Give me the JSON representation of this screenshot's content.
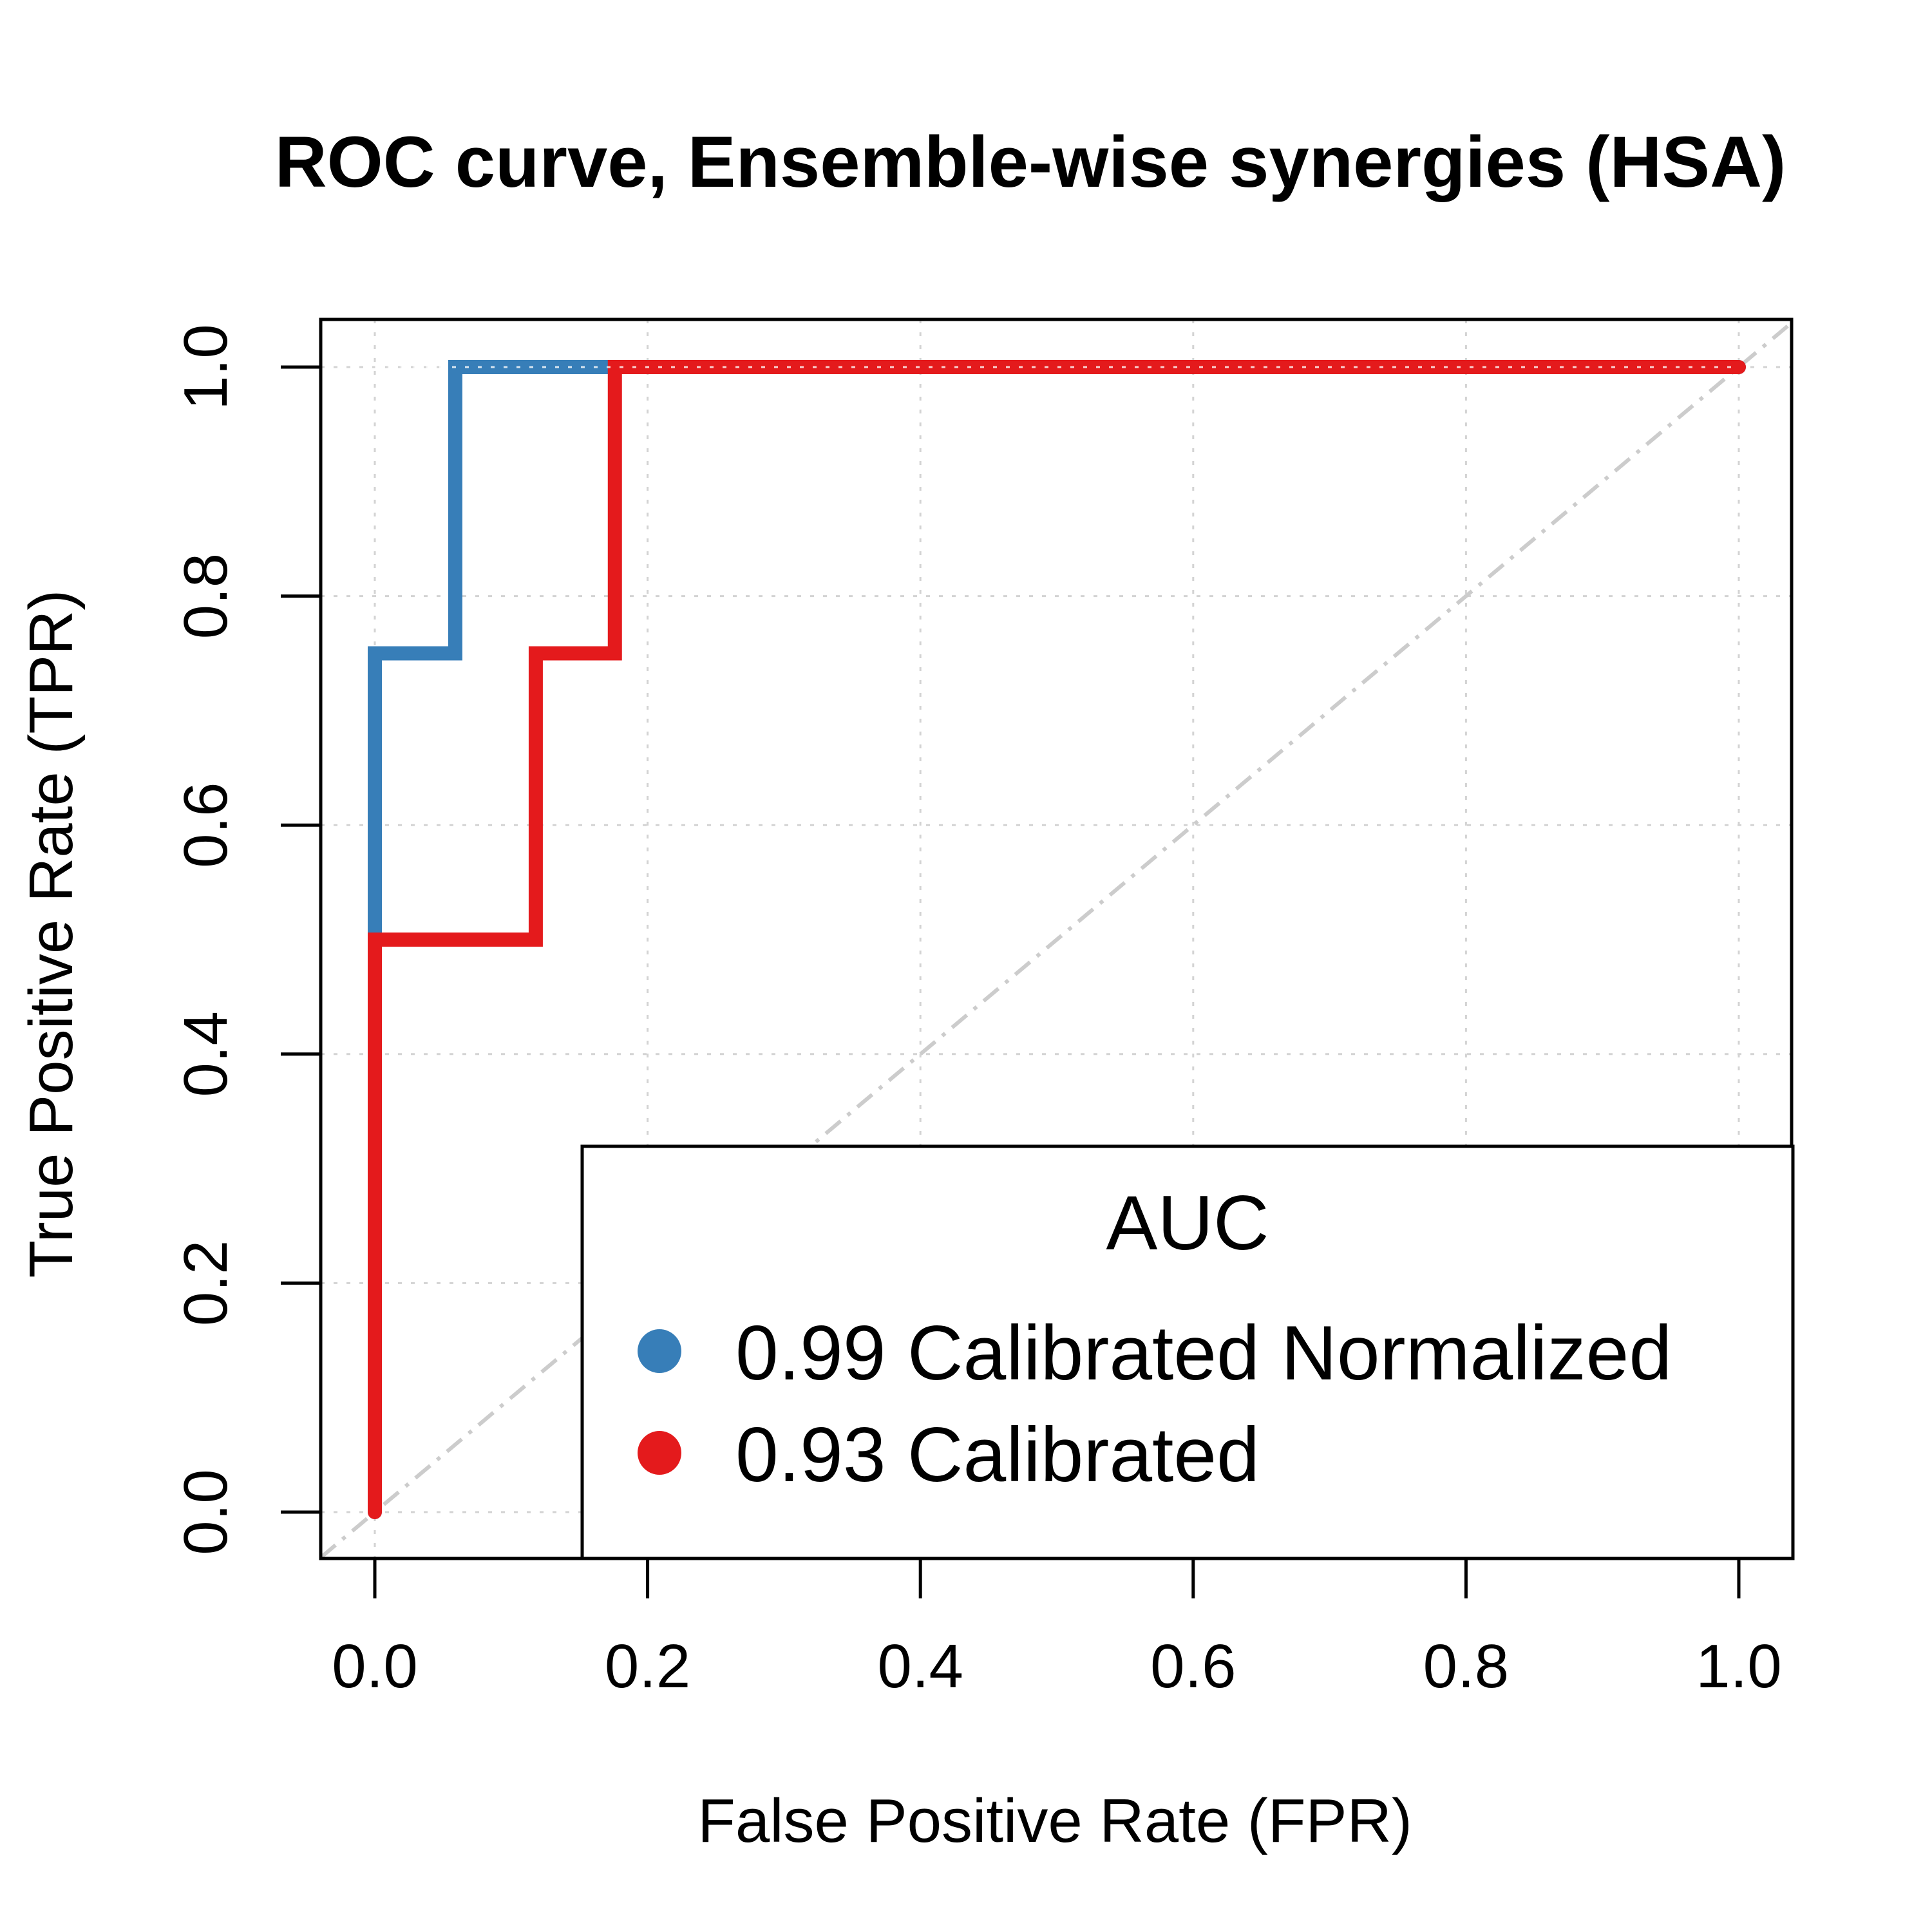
{
  "chart_data": {
    "type": "line",
    "title": "ROC curve, Ensemble-wise synergies (HSA)",
    "xlabel": "False Positive Rate (FPR)",
    "ylabel": "True Positive Rate (TPR)",
    "xlim": [
      0,
      1
    ],
    "ylim": [
      0,
      1
    ],
    "x_ticks": [
      "0.0",
      "0.2",
      "0.4",
      "0.6",
      "0.8",
      "1.0"
    ],
    "y_ticks": [
      "0.0",
      "0.2",
      "0.4",
      "0.6",
      "0.8",
      "1.0"
    ],
    "grid": true,
    "reference_line": "diagonal",
    "legend": {
      "title": "AUC",
      "placement": "bottom-right",
      "entries": [
        "0.99 Calibrated Normalized",
        "0.93 Calibrated"
      ]
    },
    "series": [
      {
        "color": "#377eb8",
        "x": [
          0,
          0,
          0,
          0.059,
          0.059,
          1
        ],
        "y": [
          0,
          0.5,
          0.75,
          0.75,
          1,
          1
        ]
      },
      {
        "color": "#e41a1c",
        "x": [
          0,
          0,
          0.118,
          0.118,
          0.176,
          0.176,
          1
        ],
        "y": [
          0,
          0.5,
          0.5,
          0.75,
          0.75,
          1,
          1
        ]
      }
    ]
  }
}
